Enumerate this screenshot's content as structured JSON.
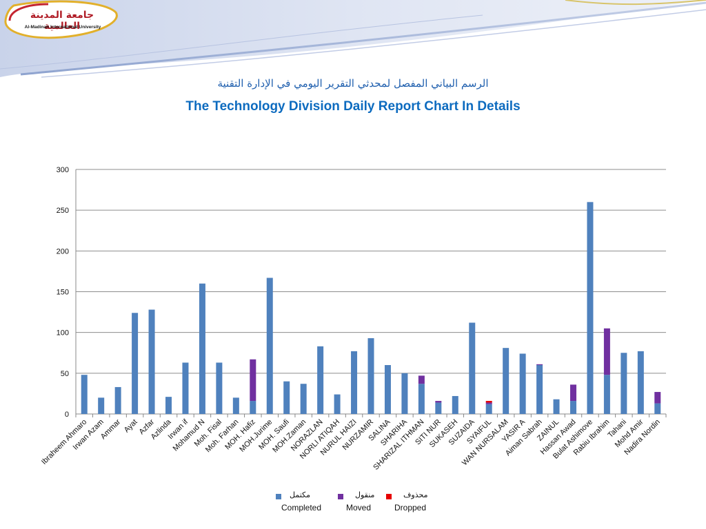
{
  "logo": {
    "name_ar": "جامعة المدينة العالمية",
    "name_en": "Al-Madinah International University"
  },
  "title_ar": "الرسم البياني المفصل لمحدثي التقرير اليومي في الإدارة التقنية",
  "title_en": "The Technology Division Daily Report Chart In Details",
  "colors": {
    "completed": "#4f81bd",
    "moved": "#7030a0",
    "dropped": "#e60000",
    "header_swoosh": "#9fb3d9"
  },
  "legend": [
    {
      "key": "completed",
      "label_ar": "مكتمل",
      "label_en": "Completed"
    },
    {
      "key": "moved",
      "label_ar": "منقول",
      "label_en": "Moved"
    },
    {
      "key": "dropped",
      "label_ar": "محذوف",
      "label_en": "Dropped"
    }
  ],
  "chart_data": {
    "type": "bar",
    "stacked": true,
    "categories": [
      "Ibraheem Ahmaro",
      "Irwan Azam",
      "Ammar",
      "Ayat",
      "Azfar",
      "Azlinda",
      "Irwan if",
      "Mohamud N",
      "Moh. Fisal",
      "Moh. Farhan",
      "MOH. Hafiz",
      "MOH.Jurime",
      "MOH. Saufi",
      "MOH.Zaman",
      "NORAZLAN",
      "NORLI ATIQAH",
      "NURUL HAIZI",
      "NURZAMIR",
      "SALINA",
      "SHARIHA",
      "SHARIZAL ITHMAN",
      "SITI NUR",
      "SUKASEH",
      "SUZAIDA",
      "SYAIFUL",
      "WAN NURSALAM",
      "YASIR A",
      "Aiman Sabrah",
      "ZAINUL",
      "Hassan Awad",
      "Bulat Ashimove",
      "Rabiu Ibrahim",
      "Tahani",
      "Mohd Amir",
      "Nadira Nordin"
    ],
    "series": [
      {
        "name": "Completed",
        "values": [
          48,
          20,
          33,
          124,
          128,
          21,
          63,
          160,
          63,
          20,
          16,
          167,
          40,
          37,
          83,
          24,
          77,
          93,
          60,
          50,
          37,
          14,
          22,
          112,
          12,
          81,
          74,
          60,
          18,
          16,
          260,
          48,
          75,
          77,
          13
        ]
      },
      {
        "name": "Moved",
        "values": [
          0,
          0,
          0,
          0,
          0,
          0,
          0,
          0,
          0,
          0,
          51,
          0,
          0,
          0,
          0,
          0,
          0,
          0,
          0,
          0,
          10,
          2,
          0,
          0,
          2,
          0,
          0,
          1,
          0,
          20,
          0,
          57,
          0,
          0,
          14
        ]
      },
      {
        "name": "Dropped",
        "values": [
          0,
          0,
          0,
          0,
          0,
          0,
          0,
          0,
          0,
          0,
          0,
          0,
          0,
          0,
          0,
          0,
          0,
          0,
          0,
          0,
          0,
          0,
          0,
          0,
          2,
          0,
          0,
          0,
          0,
          0,
          0,
          0,
          0,
          0,
          0
        ]
      }
    ],
    "ylim": [
      0,
      300
    ],
    "yticks": [
      0,
      50,
      100,
      150,
      200,
      250,
      300
    ],
    "grid": true,
    "legend_position": "bottom"
  }
}
